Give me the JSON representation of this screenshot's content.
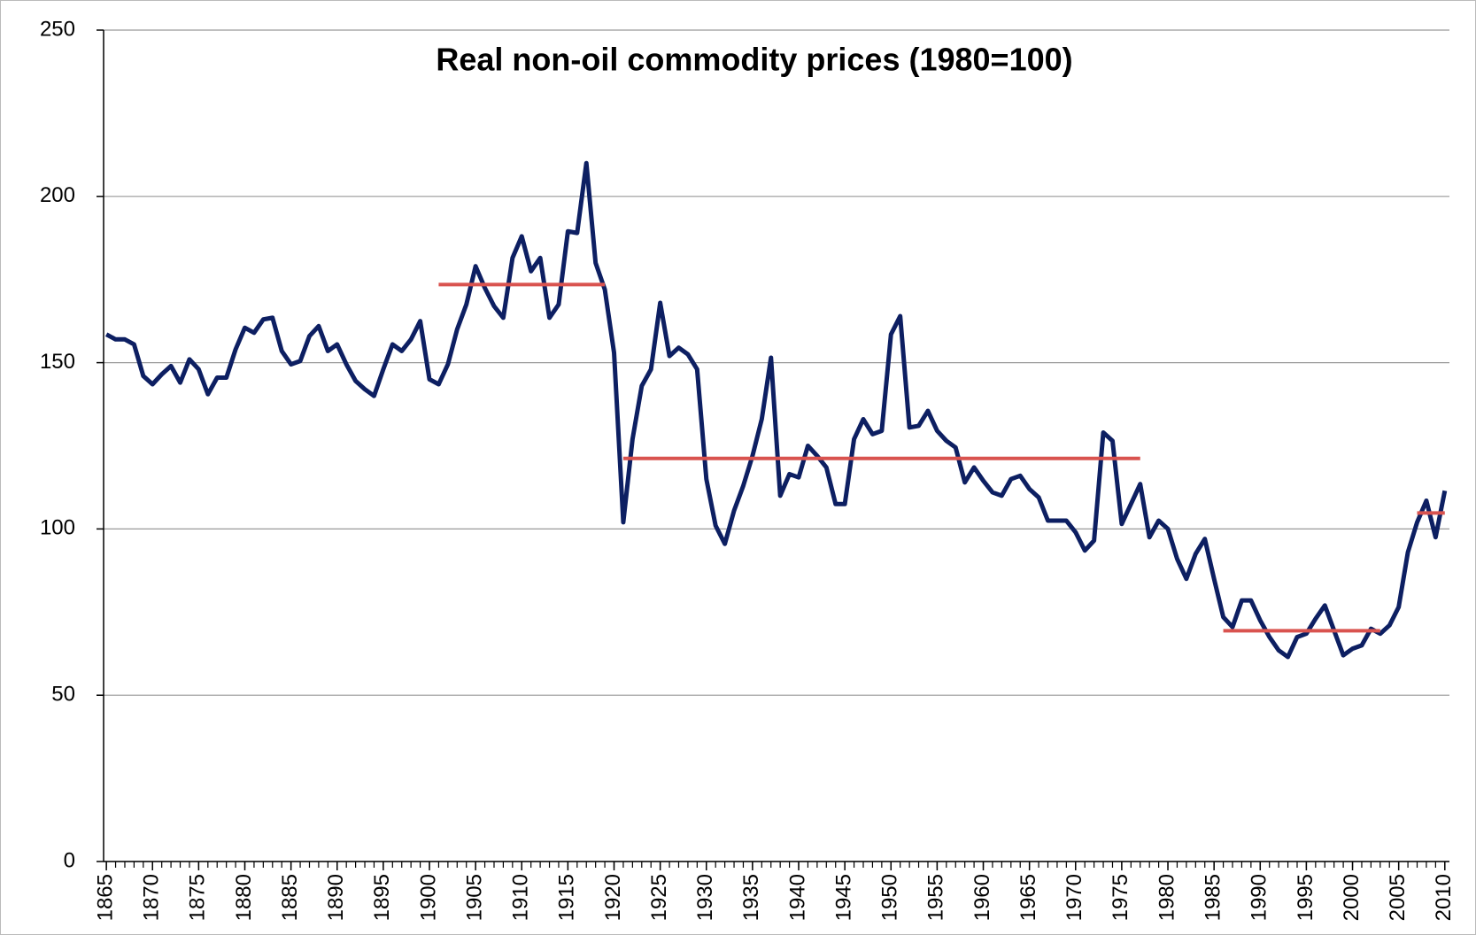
{
  "chart_data": {
    "type": "line",
    "title": "Real non-oil commodity prices (1980=100)",
    "x": [
      1865,
      1866,
      1867,
      1868,
      1869,
      1870,
      1871,
      1872,
      1873,
      1874,
      1875,
      1876,
      1877,
      1878,
      1879,
      1880,
      1881,
      1882,
      1883,
      1884,
      1885,
      1886,
      1887,
      1888,
      1889,
      1890,
      1891,
      1892,
      1893,
      1894,
      1895,
      1896,
      1897,
      1898,
      1899,
      1900,
      1901,
      1902,
      1903,
      1904,
      1905,
      1906,
      1907,
      1908,
      1909,
      1910,
      1911,
      1912,
      1913,
      1914,
      1915,
      1916,
      1917,
      1918,
      1919,
      1920,
      1921,
      1922,
      1923,
      1924,
      1925,
      1926,
      1927,
      1928,
      1929,
      1930,
      1931,
      1932,
      1933,
      1934,
      1935,
      1936,
      1937,
      1938,
      1939,
      1940,
      1941,
      1942,
      1943,
      1944,
      1945,
      1946,
      1947,
      1948,
      1949,
      1950,
      1951,
      1952,
      1953,
      1954,
      1955,
      1956,
      1957,
      1958,
      1959,
      1960,
      1961,
      1962,
      1963,
      1964,
      1965,
      1966,
      1967,
      1968,
      1969,
      1970,
      1971,
      1972,
      1973,
      1974,
      1975,
      1976,
      1977,
      1978,
      1979,
      1980,
      1981,
      1982,
      1983,
      1984,
      1985,
      1986,
      1987,
      1988,
      1989,
      1990,
      1991,
      1992,
      1993,
      1994,
      1995,
      1996,
      1997,
      1998,
      1999,
      2000,
      2001,
      2002,
      2003,
      2004,
      2005,
      2006,
      2007,
      2008,
      2009,
      2010
    ],
    "series": [
      {
        "color": "#0d1f62",
        "values": [
          158.5,
          157,
          157,
          155.5,
          146,
          143.5,
          146.5,
          149,
          144,
          151,
          148,
          140.5,
          145.5,
          145.5,
          154,
          160.5,
          159,
          163,
          163.5,
          153.5,
          149.5,
          150.5,
          158,
          161,
          153.5,
          155.5,
          149.5,
          144.5,
          142,
          140,
          148,
          155.5,
          153.5,
          157,
          162.5,
          145,
          143.5,
          149.5,
          160,
          167.5,
          179,
          172.5,
          167,
          163.5,
          181.5,
          188,
          177.5,
          181.5,
          163.5,
          167.5,
          189.5,
          189,
          210,
          180,
          172,
          153,
          102,
          127,
          143,
          148,
          168,
          152,
          154.5,
          152.5,
          148,
          115,
          101,
          95.5,
          105.5,
          113,
          122,
          133,
          151.5,
          110,
          116.5,
          115.5,
          125,
          122,
          118.5,
          107.5,
          107.5,
          127,
          133,
          128.5,
          129.5,
          158.5,
          164,
          130.5,
          131,
          135.5,
          129.5,
          126.5,
          124.5,
          114,
          118.5,
          114.5,
          111,
          110,
          115,
          116,
          112,
          109.5,
          102.5,
          102.5,
          102.5,
          99,
          93.5,
          96.5,
          129,
          126.5,
          101.5,
          107.5,
          113.5,
          97.5,
          102.5,
          100,
          91,
          85,
          92.5,
          97,
          85,
          73.5,
          70.5,
          78.5,
          78.5,
          72.5,
          67.5,
          63.5,
          61.5,
          67.5,
          68.5,
          73,
          77,
          69.5,
          62,
          64,
          65,
          70,
          68.5,
          71,
          76.5,
          93,
          102,
          108.5,
          97.5,
          111.5
        ]
      }
    ],
    "reference_lines": {
      "color": "#d9534f",
      "segments": [
        {
          "x": [
            1901,
            1919
          ],
          "value": 173.5
        },
        {
          "x": [
            1921,
            1977
          ],
          "value": 121.2
        },
        {
          "x": [
            1986,
            2003
          ],
          "value": 69.4
        },
        {
          "x": [
            2007,
            2010
          ],
          "value": 104.8
        }
      ]
    },
    "xlim": [
      1864.7,
      2010.5
    ],
    "xticks": [
      1865,
      1870,
      1875,
      1880,
      1885,
      1890,
      1895,
      1900,
      1905,
      1910,
      1915,
      1920,
      1925,
      1930,
      1935,
      1940,
      1945,
      1950,
      1955,
      1960,
      1965,
      1970,
      1975,
      1980,
      1985,
      1990,
      1995,
      2000,
      2005,
      2010
    ],
    "ylim": [
      0,
      250
    ],
    "yticks": [
      0,
      50,
      100,
      150,
      200,
      250
    ],
    "grid": true
  }
}
